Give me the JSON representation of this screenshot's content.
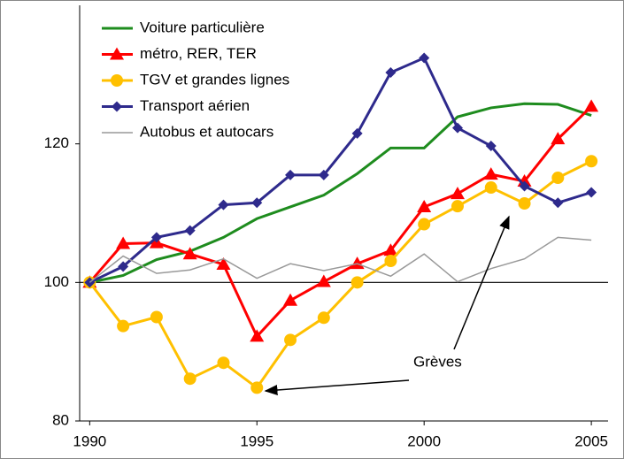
{
  "chart_data": {
    "type": "line",
    "x": [
      1990,
      1991,
      1992,
      1993,
      1994,
      1995,
      1996,
      1997,
      1998,
      1999,
      2000,
      2001,
      2002,
      2003,
      2004,
      2005
    ],
    "xlim": [
      1989.7,
      2005.5
    ],
    "xticks": [
      1990,
      1995,
      2000,
      2005
    ],
    "ylim": [
      80,
      140
    ],
    "yticks": [
      80,
      100,
      120
    ],
    "hline": 100,
    "legend": "upper left",
    "annotation": "Grèves",
    "series": [
      {
        "name": "Voiture particulière",
        "color": "#1e8c1e",
        "marker": "none",
        "values": [
          100,
          101,
          103.3,
          104.5,
          106.5,
          109.2,
          110.9,
          112.6,
          115.7,
          119.4,
          119.4,
          123.9,
          125.2,
          125.8,
          125.7,
          124.1
        ]
      },
      {
        "name": "métro, RER, TER",
        "color": "#ff0000",
        "marker": "triangle",
        "values": [
          100,
          105.6,
          105.7,
          104.1,
          102.6,
          92.2,
          97.4,
          100.1,
          102.7,
          104.6,
          110.9,
          112.8,
          115.6,
          114.6,
          120.7,
          125.4
        ]
      },
      {
        "name": "TGV et grandes lignes",
        "color": "#ffc000",
        "marker": "circle",
        "values": [
          100,
          93.7,
          95,
          86.1,
          88.4,
          84.8,
          91.7,
          94.9,
          100,
          103.1,
          108.4,
          111,
          113.7,
          111.4,
          115.1,
          117.5
        ]
      },
      {
        "name": "Transport aérien",
        "color": "#2e2a8c",
        "marker": "diamond",
        "values": [
          100,
          102.3,
          106.5,
          107.5,
          111.2,
          111.5,
          115.5,
          115.5,
          121.5,
          130.3,
          132.4,
          122.3,
          119.7,
          113.9,
          111.5,
          113
        ]
      },
      {
        "name": "Autobus et autocars",
        "color": "#999999",
        "marker": "none",
        "values": [
          100,
          103.8,
          101.3,
          101.8,
          103.4,
          100.6,
          102.7,
          101.7,
          102.7,
          100.9,
          104.1,
          100.1,
          102,
          103.4,
          106.5,
          106.1
        ]
      }
    ]
  }
}
